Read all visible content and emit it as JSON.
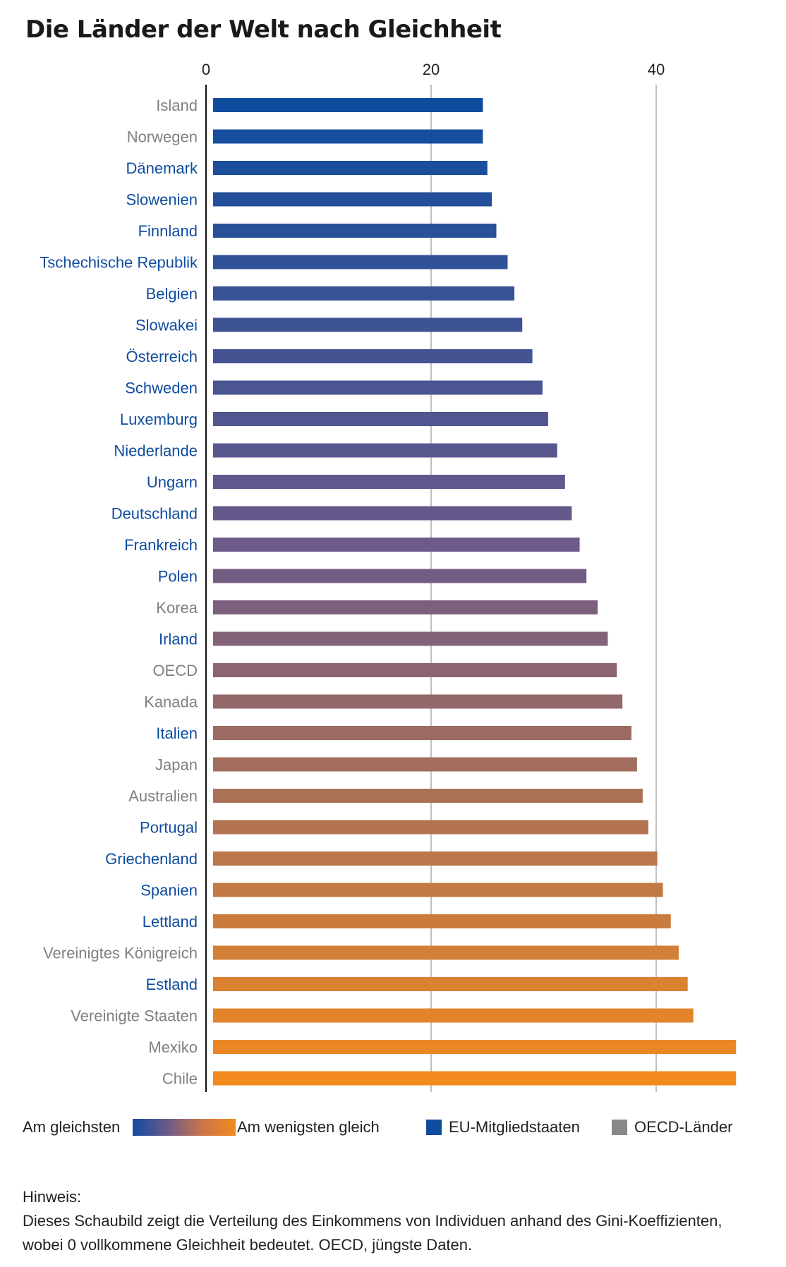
{
  "chart_data": {
    "type": "bar",
    "orientation": "horizontal",
    "title": "Die Länder der Welt nach Gleichheit",
    "xlabel": "",
    "ylabel": "",
    "xlim": [
      0,
      44
    ],
    "xticks": [
      0,
      20,
      40
    ],
    "grid": true,
    "categories": [
      "Island",
      "Norwegen",
      "Dänemark",
      "Slowenien",
      "Finnland",
      "Tschechische Republik",
      "Belgien",
      "Slowakei",
      "Österreich",
      "Schweden",
      "Luxemburg",
      "Niederlande",
      "Ungarn",
      "Deutschland",
      "Frankreich",
      "Polen",
      "Korea",
      "Irland",
      "OECD",
      "Kanada",
      "Italien",
      "Japan",
      "Australien",
      "Portugal",
      "Griechenland",
      "Spanien",
      "Lettland",
      "Vereinigtes Königreich",
      "Estland",
      "Vereinigte Staaten",
      "Mexiko",
      "Chile"
    ],
    "values": [
      24.6,
      24.6,
      25.0,
      25.4,
      25.8,
      26.8,
      27.4,
      28.1,
      29.0,
      29.9,
      30.4,
      31.2,
      31.9,
      32.5,
      33.2,
      33.8,
      34.8,
      35.7,
      36.5,
      37.0,
      37.8,
      38.3,
      38.8,
      39.3,
      40.1,
      40.6,
      41.3,
      42.0,
      42.8,
      43.3,
      47.1,
      47.1
    ],
    "group": [
      "oecd",
      "oecd",
      "eu",
      "eu",
      "eu",
      "eu",
      "eu",
      "eu",
      "eu",
      "eu",
      "eu",
      "eu",
      "eu",
      "eu",
      "eu",
      "eu",
      "oecd",
      "eu",
      "oecd",
      "oecd",
      "eu",
      "oecd",
      "oecd",
      "eu",
      "eu",
      "eu",
      "eu",
      "oecd",
      "eu",
      "oecd",
      "oecd",
      "oecd"
    ]
  },
  "colors": {
    "gradient_start": "#0f4c9e",
    "gradient_mid": "#6b5a8a",
    "gradient_end": "#f28a1e",
    "eu": "#0f4c9e",
    "oecd": "#888888",
    "eu_label": "#0f4c9e",
    "oecd_label": "#808080",
    "grid": "#c0c0c0"
  },
  "legend": {
    "most_equal": "Am gleichsten",
    "least_equal": "Am wenigsten gleich",
    "eu": "EU-Mitgliedstaaten",
    "oecd": "OECD-Länder"
  },
  "note": {
    "heading": "Hinweis:",
    "line1": "Dieses Schaubild zeigt die Verteilung des Einkommens von Individuen anhand des Gini-Koeffizienten,",
    "line2": "wobei 0 vollkommene Gleichheit bedeutet. OECD, jüngste Daten."
  }
}
